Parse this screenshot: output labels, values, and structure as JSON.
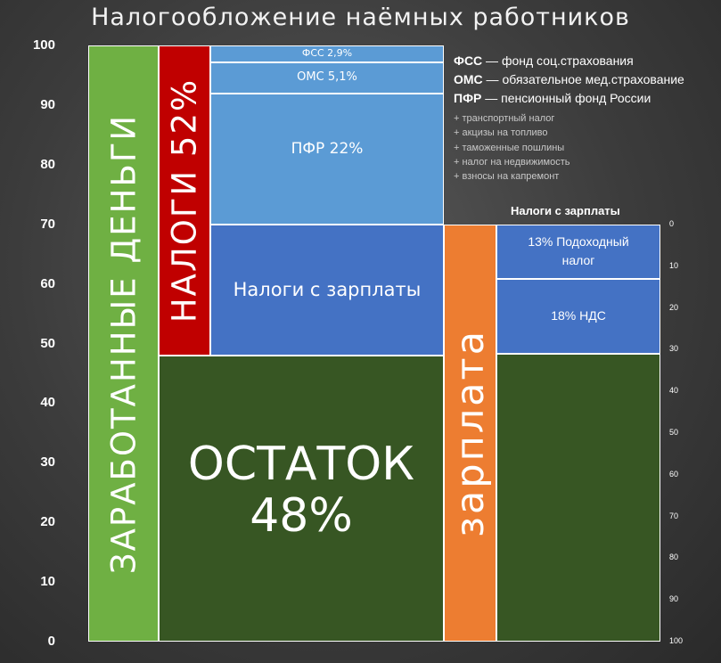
{
  "chart_data": {
    "type": "table",
    "title": "Налогообложение наёмных работников",
    "ylim": [
      0,
      100
    ],
    "y_ticks": [
      "0",
      "10",
      "20",
      "30",
      "40",
      "50",
      "60",
      "70",
      "80",
      "90",
      "100"
    ],
    "right_axis_ticks": [
      "0",
      "10",
      "20",
      "30",
      "40",
      "50",
      "60",
      "70",
      "80",
      "90",
      "100"
    ],
    "grid": false,
    "bars": [
      {
        "name": "earned",
        "label": "ЗАРАБОТАННЫЕ ДЕНЬГИ",
        "value_start": 0,
        "value_end": 100,
        "color": "#6fb043"
      },
      {
        "name": "taxes-total",
        "label": "НАЛОГИ 52%",
        "value_start": 48,
        "value_end": 100,
        "color": "#c00000"
      },
      {
        "name": "salary",
        "label": "зарплата",
        "value_start": 0,
        "value_end": 70,
        "color": "#ed7d31"
      }
    ],
    "segments": [
      {
        "name": "remainder",
        "label_lines": [
          "ОСТАТОК",
          "48%"
        ],
        "value_start": 0,
        "value_end": 48,
        "color": "#375623"
      },
      {
        "name": "salary-taxes",
        "label_lines": [
          "Налоги с зарплаты"
        ],
        "value_start": 48,
        "value_end": 70,
        "color": "#4472c4"
      },
      {
        "name": "pfr",
        "label_lines": [
          "ПФР 22%"
        ],
        "value_start": 70,
        "value_end": 92,
        "color": "#5b9bd5"
      },
      {
        "name": "oms",
        "label_lines": [
          "ОМС 5,1%"
        ],
        "value_start": 92,
        "value_end": 97.1,
        "color": "#5b9bd5"
      },
      {
        "name": "fss",
        "label_lines": [
          "ФСС 2,9%"
        ],
        "value_start": 97.1,
        "value_end": 100,
        "color": "#5b9bd5"
      }
    ],
    "breakdown_title": "Налоги с зарплаты",
    "breakdown_scale": [
      0,
      100
    ],
    "breakdown": [
      {
        "name": "income-tax",
        "label_lines": [
          "13% Подоходный",
          "налог"
        ],
        "value_start": 0,
        "value_end": 13,
        "color": "#4472c4"
      },
      {
        "name": "vat",
        "label_lines": [
          "18% НДС"
        ],
        "value_start": 13,
        "value_end": 31,
        "color": "#4472c4"
      },
      {
        "name": "remaining",
        "label_lines": [],
        "value_start": 31,
        "value_end": 100,
        "color": "#375623"
      }
    ],
    "legend": [
      {
        "abbr": "ФСС",
        "text": " — фонд соц.страхования"
      },
      {
        "abbr": "ОМС",
        "text": " — обязательное мед.страхование"
      },
      {
        "abbr": "ПФР",
        "text": " — пенсионный фонд России"
      }
    ],
    "notes": [
      "+ транспортный налог",
      "+ акцизы на топливо",
      "+ таможенные пошлины",
      "+ налог на недвижимость",
      "+ взносы на капремонт"
    ]
  }
}
